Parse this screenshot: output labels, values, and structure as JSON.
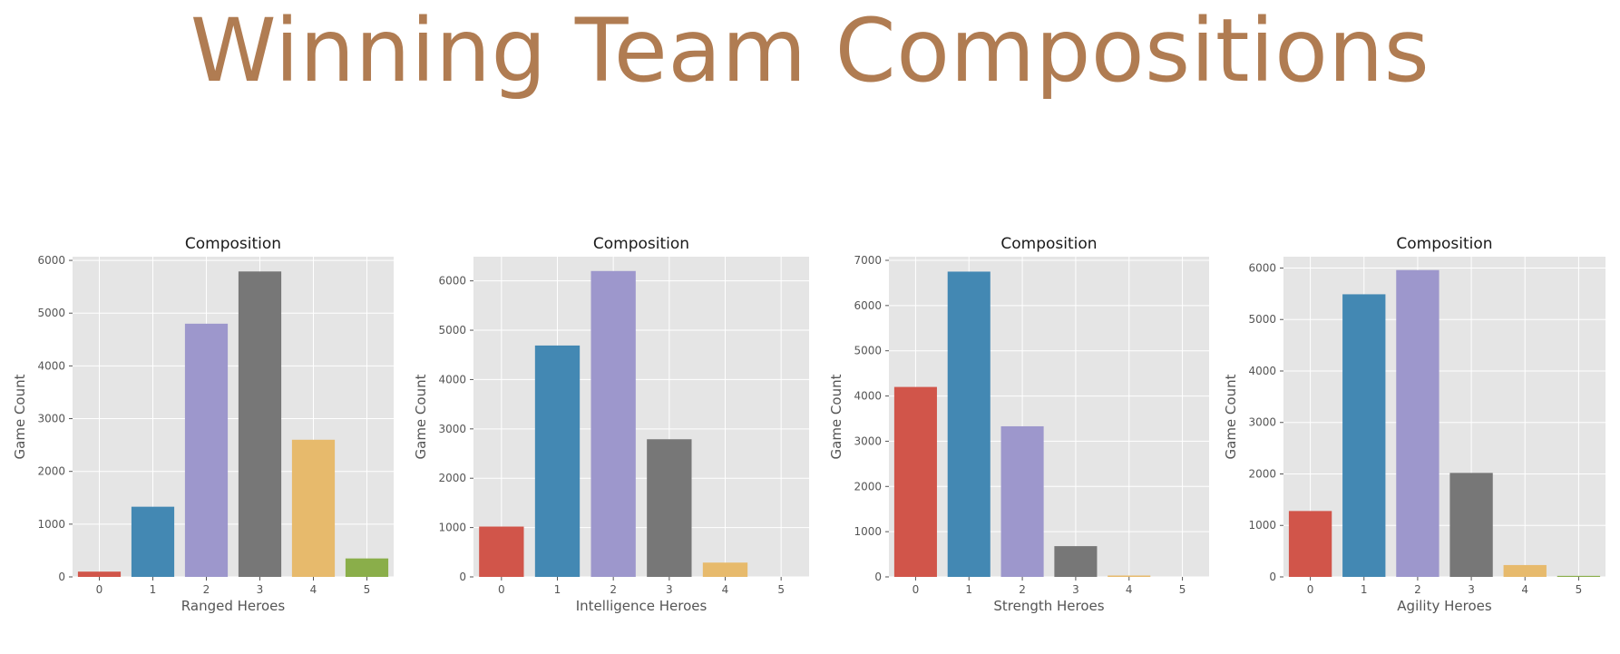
{
  "figure": {
    "title": "Winning Team Compositions",
    "title_color": "#b07c52",
    "plot_background": "#e5e5e5",
    "grid_color": "#ffffff",
    "palette": [
      "#d1554a",
      "#4388b3",
      "#9d97cc",
      "#777777",
      "#e7ba6c",
      "#8aae4a"
    ]
  },
  "chart_data": [
    {
      "type": "bar",
      "title": "Composition",
      "xlabel": "Ranged Heroes",
      "ylabel": "Game Count",
      "categories": [
        "0",
        "1",
        "2",
        "3",
        "4",
        "5"
      ],
      "values": [
        100,
        1330,
        4800,
        5790,
        2600,
        350
      ],
      "ylim": [
        0,
        6070
      ],
      "yticks": [
        0,
        1000,
        2000,
        3000,
        4000,
        5000,
        6000
      ],
      "grid": true
    },
    {
      "type": "bar",
      "title": "Composition",
      "xlabel": "Intelligence Heroes",
      "ylabel": "Game Count",
      "categories": [
        "0",
        "1",
        "2",
        "3",
        "4",
        "5"
      ],
      "values": [
        1020,
        4690,
        6200,
        2790,
        290,
        0
      ],
      "ylim": [
        0,
        6490
      ],
      "yticks": [
        0,
        1000,
        2000,
        3000,
        4000,
        5000,
        6000
      ],
      "grid": true
    },
    {
      "type": "bar",
      "title": "Composition",
      "xlabel": "Strength Heroes",
      "ylabel": "Game Count",
      "categories": [
        "0",
        "1",
        "2",
        "3",
        "4",
        "5"
      ],
      "values": [
        4200,
        6750,
        3330,
        680,
        30,
        0
      ],
      "ylim": [
        0,
        7080
      ],
      "yticks": [
        0,
        1000,
        2000,
        3000,
        4000,
        5000,
        6000,
        7000
      ],
      "grid": true
    },
    {
      "type": "bar",
      "title": "Composition",
      "xlabel": "Agility Heroes",
      "ylabel": "Game Count",
      "categories": [
        "0",
        "1",
        "2",
        "3",
        "4",
        "5"
      ],
      "values": [
        1280,
        5490,
        5960,
        2020,
        230,
        20
      ],
      "ylim": [
        0,
        6220
      ],
      "yticks": [
        0,
        1000,
        2000,
        3000,
        4000,
        5000,
        6000
      ],
      "grid": true
    }
  ]
}
